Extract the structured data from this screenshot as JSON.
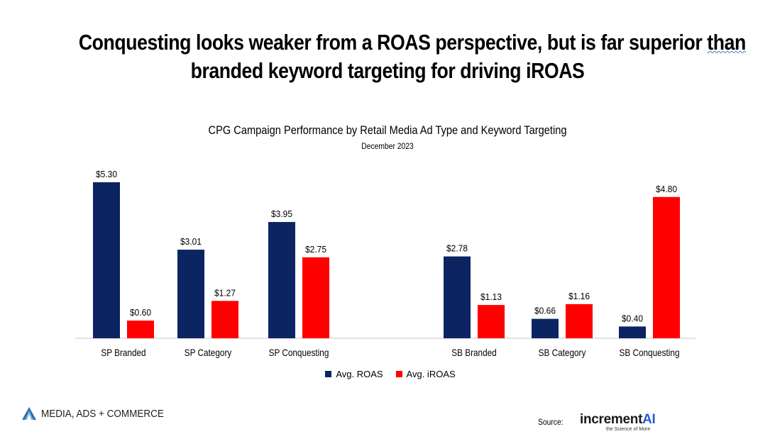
{
  "headline": {
    "line1_prefix": "Conquesting looks weaker from a ROAS perspective, but is far superior ",
    "line1_underlined": "than",
    "line2": "branded keyword targeting for driving iROAS"
  },
  "chart_data": {
    "type": "bar",
    "title": "CPG Campaign Performance by Retail Media Ad Type and Keyword Targeting",
    "subtitle": "December 2023",
    "categories": [
      "SP Branded",
      "SP Category",
      "SP Conquesting",
      "SB Branded",
      "SB Category",
      "SB Conquesting"
    ],
    "series": [
      {
        "name": "Avg. ROAS",
        "color": "#0d2463",
        "values": [
          5.3,
          3.01,
          3.95,
          2.78,
          0.66,
          0.4
        ],
        "labels": [
          "$5.30",
          "$3.01",
          "$3.95",
          "$2.78",
          "$0.66",
          "$0.40"
        ]
      },
      {
        "name": "Avg.  iROAS",
        "color": "#ff0000",
        "values": [
          0.6,
          1.27,
          2.75,
          1.13,
          1.16,
          4.8
        ],
        "labels": [
          "$0.60",
          "$1.27",
          "$2.75",
          "$1.13",
          "$1.16",
          "$4.80"
        ]
      }
    ],
    "ylim": [
      0,
      5.3
    ],
    "grid": false,
    "legend_position": "bottom-center",
    "gap_between_groups": "SP Conquesting|SB Branded"
  },
  "footer": {
    "left_logo_text": "MEDIA, ADS + COMMERCE",
    "source_label": "Source:",
    "brand_name_prefix": "increment",
    "brand_name_accent": "AI",
    "brand_tagline": "the Science of More"
  }
}
